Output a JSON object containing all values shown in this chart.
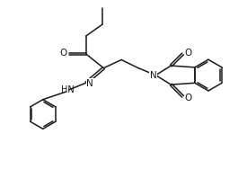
{
  "background": "#ffffff",
  "line_color": "#1a1a1a",
  "line_width": 1.1,
  "font_size": 7.0,
  "figsize": [
    2.65,
    2.08
  ],
  "dpi": 100,
  "xlim": [
    0,
    10
  ],
  "ylim": [
    0,
    7.85
  ]
}
